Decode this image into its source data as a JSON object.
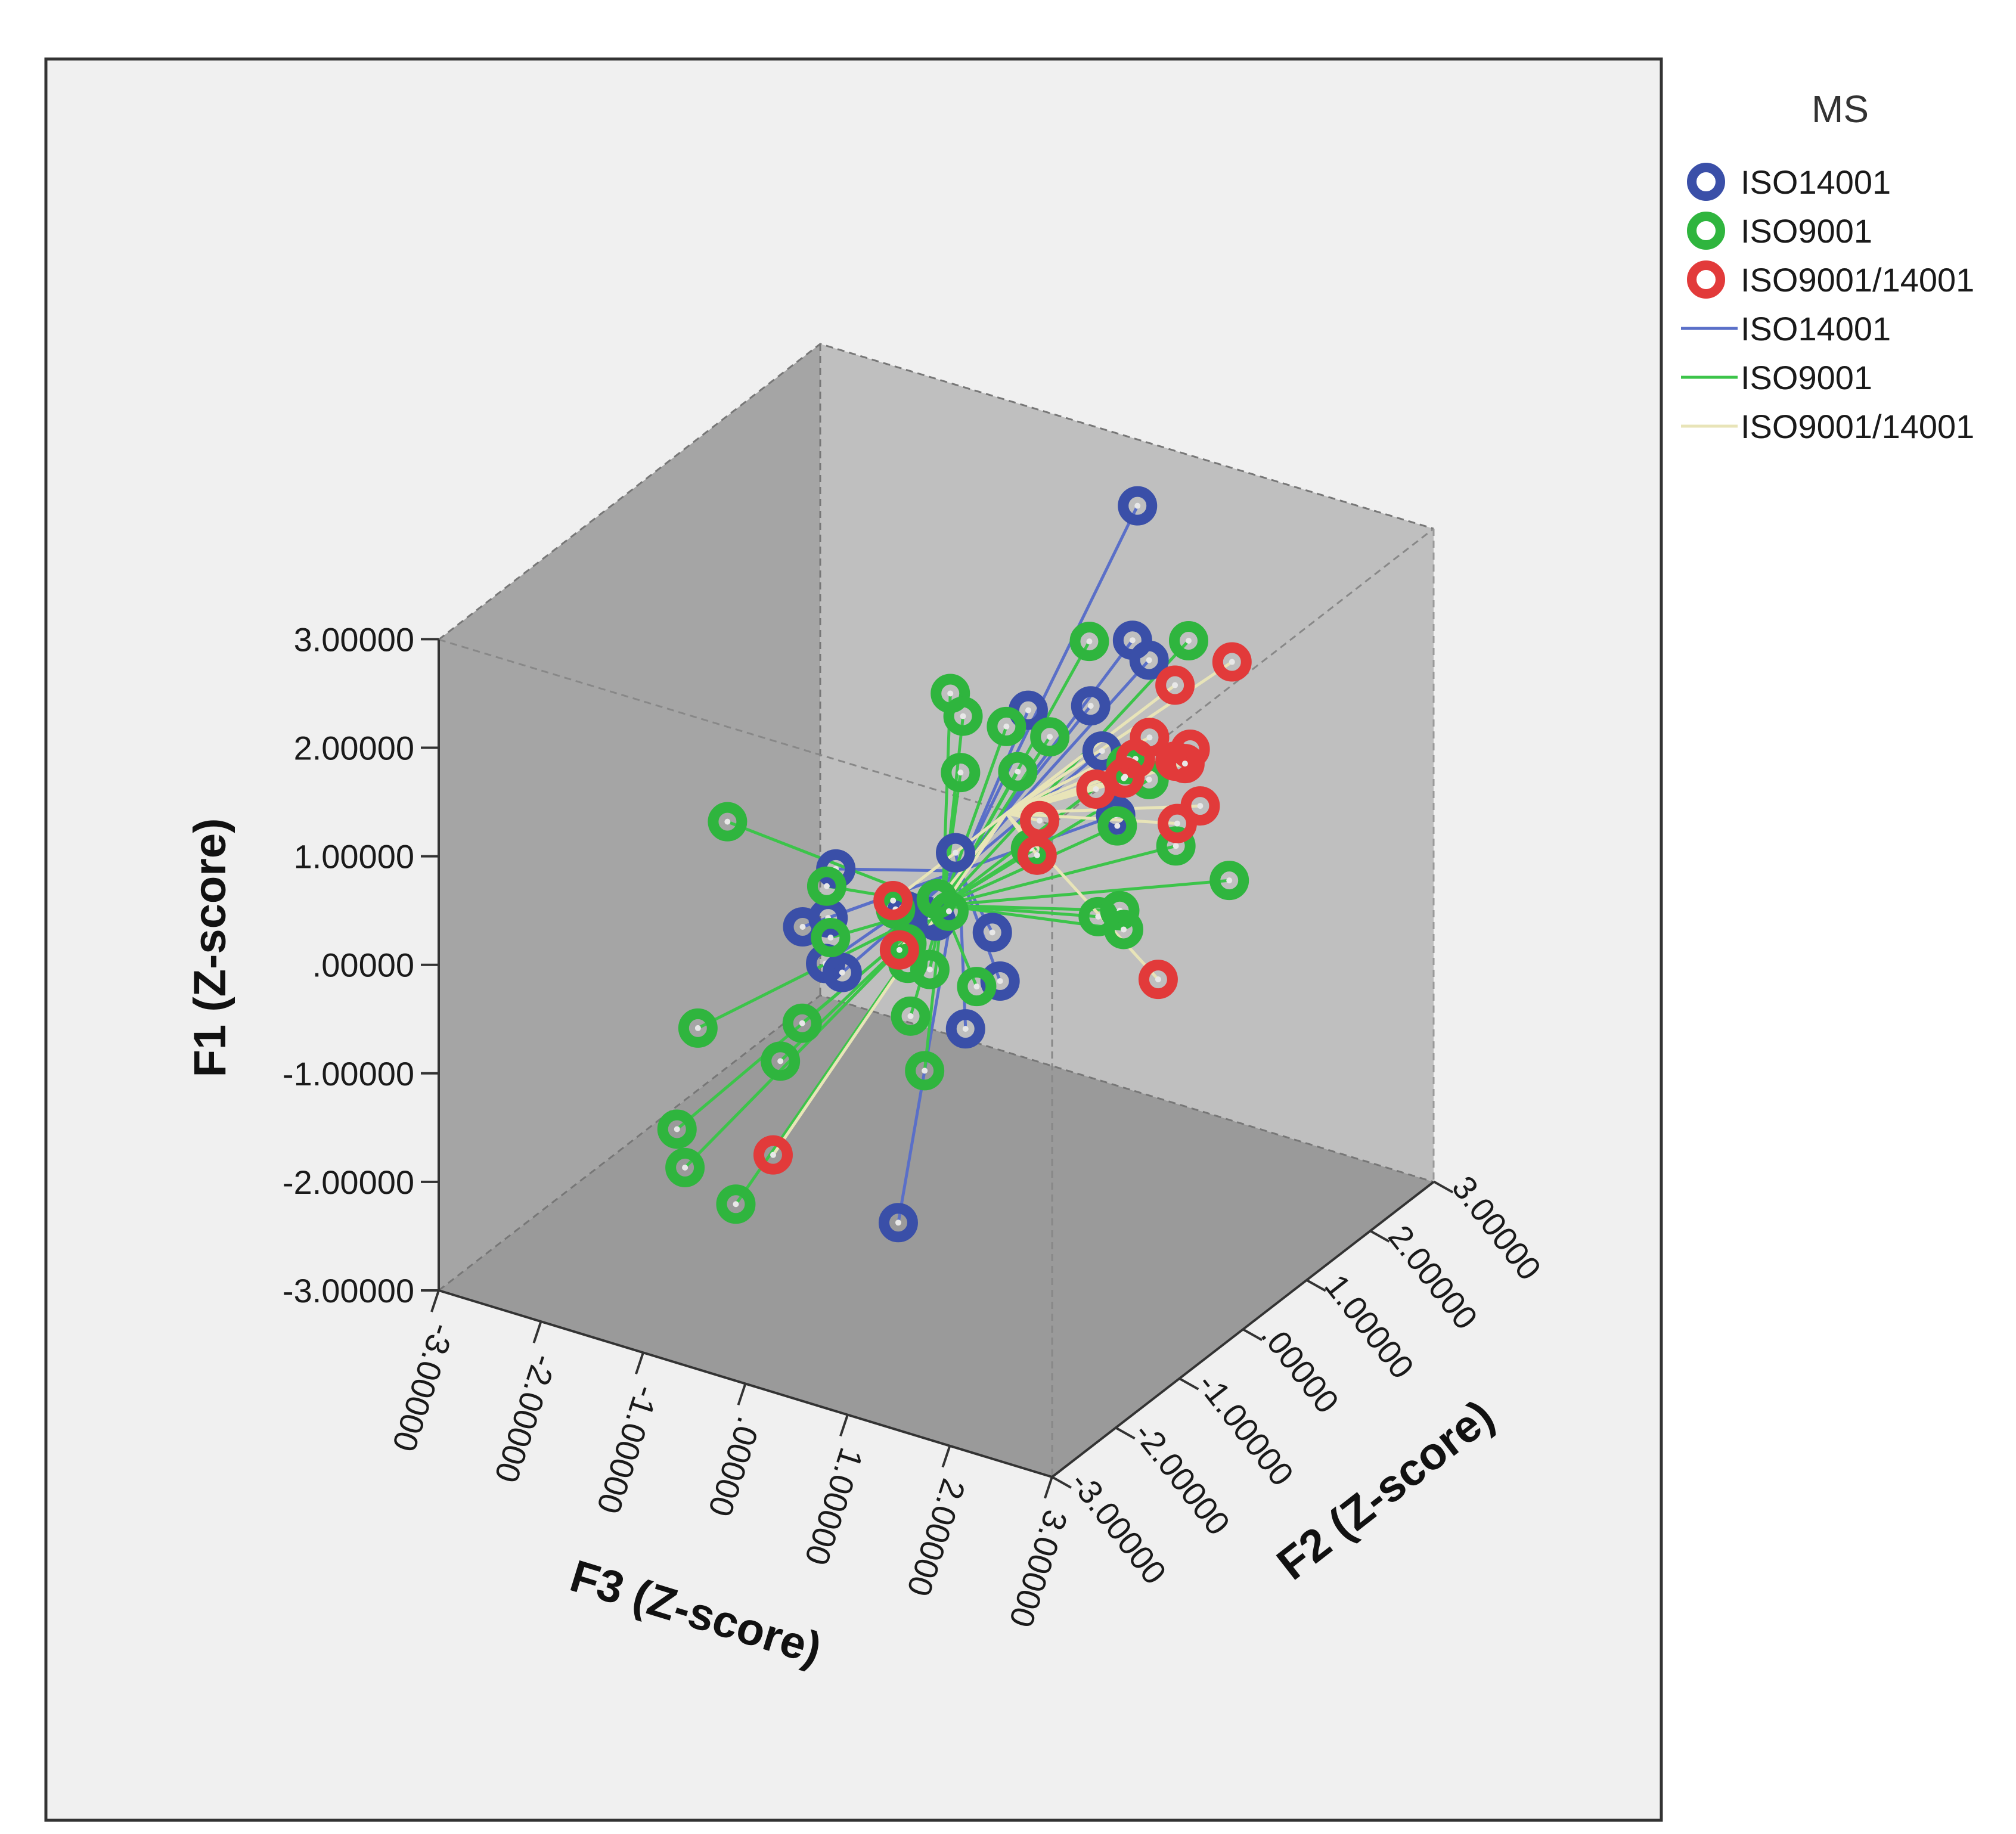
{
  "chart_data": {
    "type": "scatter",
    "subtype": "3d-scatter-with-centroid-spikes",
    "legend_title": "MS",
    "marker_legend": [
      {
        "label": "ISO14001",
        "color": "#3a4fa8"
      },
      {
        "label": "ISO9001",
        "color": "#2fb53e"
      },
      {
        "label": "ISO9001/14001",
        "color": "#e23a3a"
      }
    ],
    "line_legend": [
      {
        "label": "ISO14001",
        "color": "#5a6fc8"
      },
      {
        "label": "ISO9001",
        "color": "#3cc44a"
      },
      {
        "label": "ISO9001/14001",
        "color": "#e8e4b8"
      }
    ],
    "axes": {
      "vertical": {
        "label": "F1 (Z-score)",
        "range": [
          -3,
          3
        ],
        "ticks": [
          "3.00000",
          "2.00000",
          "1.00000",
          ".00000",
          "-1.00000",
          "-2.00000",
          "-3.00000"
        ]
      },
      "left_depth": {
        "label": "F3 (Z-score)",
        "range": [
          -3,
          3
        ],
        "ticks": [
          "-3.00000",
          "-2.00000",
          "-1.00000",
          ".00000",
          "1.00000",
          "2.00000",
          "3.00000"
        ]
      },
      "right_depth": {
        "label": "F2 (Z-score)",
        "range": [
          -3,
          3
        ],
        "ticks": [
          "-3.00000",
          "-2.00000",
          "-1.00000",
          ".00000",
          "1.00000",
          "2.00000",
          "3.00000"
        ]
      }
    },
    "centroids": [
      {
        "group": "ISO14001",
        "F1": 0.3,
        "F2": 0.2,
        "F3": 0.1
      },
      {
        "group": "ISO9001",
        "F1": 0.0,
        "F2": 0.1,
        "F3": 0.0
      },
      {
        "group": "ISO9001/14001",
        "F1": 0.9,
        "F2": 0.3,
        "F3": 0.5
      }
    ],
    "series": [
      {
        "name": "ISO14001",
        "points": [
          {
            "F1": 2.9,
            "F2": 2.2,
            "F3": 0.6
          },
          {
            "F1": 2.1,
            "F2": 0.0,
            "F3": 0.9
          },
          {
            "F1": 2.0,
            "F2": 0.5,
            "F3": 1.2
          },
          {
            "F1": 1.9,
            "F2": 1.8,
            "F3": 0.8
          },
          {
            "F1": 1.7,
            "F2": 1.9,
            "F3": 0.9
          },
          {
            "F1": 1.3,
            "F2": 1.0,
            "F3": 1.0
          },
          {
            "F1": 1.3,
            "F2": -1.9,
            "F3": 0.2
          },
          {
            "F1": 0.8,
            "F2": -2.1,
            "F3": 0.0
          },
          {
            "F1": 0.7,
            "F2": -1.7,
            "F3": 0.0
          },
          {
            "F1": 0.4,
            "F2": -1.9,
            "F3": 0.1
          },
          {
            "F1": 0.3,
            "F2": -1.8,
            "F3": 0.2
          },
          {
            "F1": 0.9,
            "F2": -0.5,
            "F3": 0.5
          },
          {
            "F1": 0.3,
            "F2": -0.6,
            "F3": 0.3
          },
          {
            "F1": -0.2,
            "F2": 2.5,
            "F3": 0.2
          },
          {
            "F1": -0.3,
            "F2": 0.4,
            "F3": 0.3
          },
          {
            "F1": -0.6,
            "F2": 0.2,
            "F3": 0.5
          },
          {
            "F1": -1.2,
            "F2": 0.3,
            "F3": 0.1
          },
          {
            "F1": -2.1,
            "F2": -1.4,
            "F3": 0.5
          },
          {
            "F1": -0.1,
            "F2": 0.0,
            "F3": 0.0
          },
          {
            "F1": 0.1,
            "F2": -0.3,
            "F3": -0.1
          }
        ]
      },
      {
        "name": "ISO9001",
        "points": [
          {
            "F1": 2.0,
            "F2": -2.8,
            "F3": -0.3
          },
          {
            "F1": 2.4,
            "F2": 0.8,
            "F3": 1.0
          },
          {
            "F1": 2.1,
            "F2": -0.1,
            "F3": 0.2
          },
          {
            "F1": 1.8,
            "F2": 0.1,
            "F3": 0.2
          },
          {
            "F1": 1.7,
            "F2": 0.3,
            "F3": 0.5
          },
          {
            "F1": 1.6,
            "F2": 0.5,
            "F3": 0.8
          },
          {
            "F1": 1.8,
            "F2": 2.2,
            "F3": 1.1
          },
          {
            "F1": 1.4,
            "F2": -0.1,
            "F3": 0.3
          },
          {
            "F1": 1.0,
            "F2": 0.8,
            "F3": 0.3
          },
          {
            "F1": 0.8,
            "F2": -1.4,
            "F3": -0.2
          },
          {
            "F1": 0.4,
            "F2": -1.5,
            "F3": -0.1
          },
          {
            "F1": 0.4,
            "F2": -0.8,
            "F3": 0.1
          },
          {
            "F1": 0.3,
            "F2": -0.3,
            "F3": 0.2
          },
          {
            "F1": 0.8,
            "F2": 1.7,
            "F3": 0.8
          },
          {
            "F1": 0.6,
            "F2": 1.9,
            "F3": 0.9
          },
          {
            "F1": 0.4,
            "F2": 1.4,
            "F3": 0.9
          },
          {
            "F1": 0.0,
            "F2": 2.0,
            "F3": 1.1
          },
          {
            "F1": -0.3,
            "F2": 1.1,
            "F3": 0.9
          },
          {
            "F1": -0.5,
            "F2": 1.6,
            "F3": 0.8
          },
          {
            "F1": -0.6,
            "F2": 1.5,
            "F3": 0.9
          },
          {
            "F1": -0.8,
            "F2": 3.0,
            "F3": 1.0
          },
          {
            "F1": -0.3,
            "F2": -2.3,
            "F3": -0.9
          },
          {
            "F1": -0.2,
            "F2": -0.3,
            "F3": -0.1
          },
          {
            "F1": -0.5,
            "F2": -0.1,
            "F3": 0.0
          },
          {
            "F1": -1.1,
            "F2": -0.5,
            "F3": -1.0
          },
          {
            "F1": -1.3,
            "F2": 0.4,
            "F3": -0.5
          },
          {
            "F1": -1.2,
            "F2": 1.0,
            "F3": -0.9
          },
          {
            "F1": -1.7,
            "F2": 0.3,
            "F3": -0.3
          },
          {
            "F1": -1.7,
            "F2": -0.2,
            "F3": -1.4
          },
          {
            "F1": -1.6,
            "F2": 1.6,
            "F3": -0.6
          },
          {
            "F1": -2.0,
            "F2": -1.7,
            "F3": -1.4
          },
          {
            "F1": -2.3,
            "F2": -0.7,
            "F3": -2.1
          },
          {
            "F1": -2.7,
            "F2": -0.9,
            "F3": -1.4
          },
          {
            "F1": 0.2,
            "F2": 1.0,
            "F3": 0.3
          },
          {
            "F1": 0.1,
            "F2": 0.0,
            "F3": 0.0
          },
          {
            "F1": -0.1,
            "F2": 0.2,
            "F3": 0.0
          }
        ]
      },
      {
        "name": "ISO9001/14001",
        "points": [
          {
            "F1": 2.3,
            "F2": 0.7,
            "F3": 1.9
          },
          {
            "F1": 2.0,
            "F2": 0.3,
            "F3": 1.9
          },
          {
            "F1": 1.7,
            "F2": 0.4,
            "F3": 1.7
          },
          {
            "F1": 1.6,
            "F2": 0.7,
            "F3": 1.9
          },
          {
            "F1": 1.5,
            "F2": 0.1,
            "F3": 1.5
          },
          {
            "F1": 1.5,
            "F2": 1.1,
            "F3": 1.8
          },
          {
            "F1": 1.3,
            "F2": 0.7,
            "F3": 1.4
          },
          {
            "F1": 1.6,
            "F2": 2.4,
            "F3": 1.4
          },
          {
            "F1": 1.1,
            "F2": 1.5,
            "F3": 1.5
          },
          {
            "F1": 1.0,
            "F2": 1.2,
            "F3": 1.1
          },
          {
            "F1": 0.8,
            "F2": 0.5,
            "F3": 0.7
          },
          {
            "F1": 0.6,
            "F2": 0.3,
            "F3": 0.8
          },
          {
            "F1": 0.5,
            "F2": 1.9,
            "F3": 1.4
          },
          {
            "F1": 0.4,
            "F2": 1.7,
            "F3": 1.3
          },
          {
            "F1": 0.6,
            "F2": -1.0,
            "F3": 0.2
          },
          {
            "F1": 0.1,
            "F2": -0.9,
            "F3": 0.2
          },
          {
            "F1": -0.9,
            "F2": 1.4,
            "F3": 1.3
          },
          {
            "F1": -1.7,
            "F2": -1.6,
            "F3": -0.6
          }
        ]
      }
    ]
  }
}
